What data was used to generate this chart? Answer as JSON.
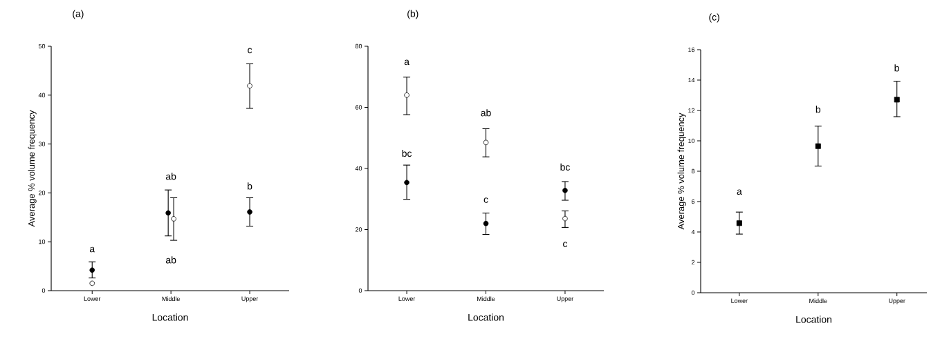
{
  "chart_data": [
    {
      "type": "scatter",
      "title": "(a)",
      "xlabel": "Location",
      "ylabel": "Average  % volume frequency",
      "categories": [
        "Lower",
        "Middle",
        "Upper"
      ],
      "ylim": [
        0,
        50
      ],
      "yticks": [
        0,
        10,
        20,
        30,
        40,
        50
      ],
      "marker": "circle",
      "grid": false,
      "series": [
        {
          "color": "#000000",
          "values": [
            4.2,
            15.9,
            16.1
          ],
          "errors": [
            [
              2.6,
              5.9
            ],
            [
              11.2,
              20.6
            ],
            [
              13.2,
              19.0
            ]
          ]
        },
        {
          "color": "#ffffff",
          "values": [
            1.5,
            14.7,
            41.9
          ],
          "errors": [
            null,
            [
              10.3,
              19.0
            ],
            [
              37.3,
              46.4
            ]
          ]
        }
      ],
      "annotations": [
        "a",
        "ab",
        "ab",
        "c",
        "b"
      ]
    },
    {
      "type": "scatter",
      "title": "(b)",
      "xlabel": "Location",
      "categories": [
        "Lower",
        "Middle",
        "Upper"
      ],
      "ylim": [
        0,
        80
      ],
      "yticks": [
        0,
        20,
        40,
        60,
        80
      ],
      "marker": "circle",
      "grid": false,
      "series": [
        {
          "color": "#000000",
          "values": [
            35.4,
            22.0,
            32.8
          ],
          "errors": [
            [
              29.9,
              41.1
            ],
            [
              18.4,
              25.4
            ],
            [
              29.6,
              35.7
            ]
          ]
        },
        {
          "color": "#ffffff",
          "values": [
            64.0,
            48.5,
            23.6
          ],
          "errors": [
            [
              57.6,
              69.9
            ],
            [
              43.8,
              53.0
            ],
            [
              20.7,
              26.1
            ]
          ]
        }
      ],
      "annotations": [
        "a",
        "bc",
        "ab",
        "c",
        "bc",
        "c"
      ]
    },
    {
      "type": "scatter",
      "title": "(c)",
      "xlabel": "Location",
      "ylabel": "Average  % volume frequency",
      "categories": [
        "Lower",
        "Middle",
        "Upper"
      ],
      "ylim": [
        0,
        16
      ],
      "yticks": [
        0,
        2,
        4,
        6,
        8,
        10,
        12,
        14,
        16
      ],
      "marker": "square",
      "grid": false,
      "series": [
        {
          "color": "#000000",
          "values": [
            4.58,
            9.65,
            12.71
          ],
          "errors": [
            [
              3.86,
              5.31
            ],
            [
              8.34,
              10.97
            ],
            [
              11.59,
              13.92
            ]
          ]
        }
      ],
      "annotations": [
        "a",
        "b",
        "b"
      ]
    }
  ]
}
